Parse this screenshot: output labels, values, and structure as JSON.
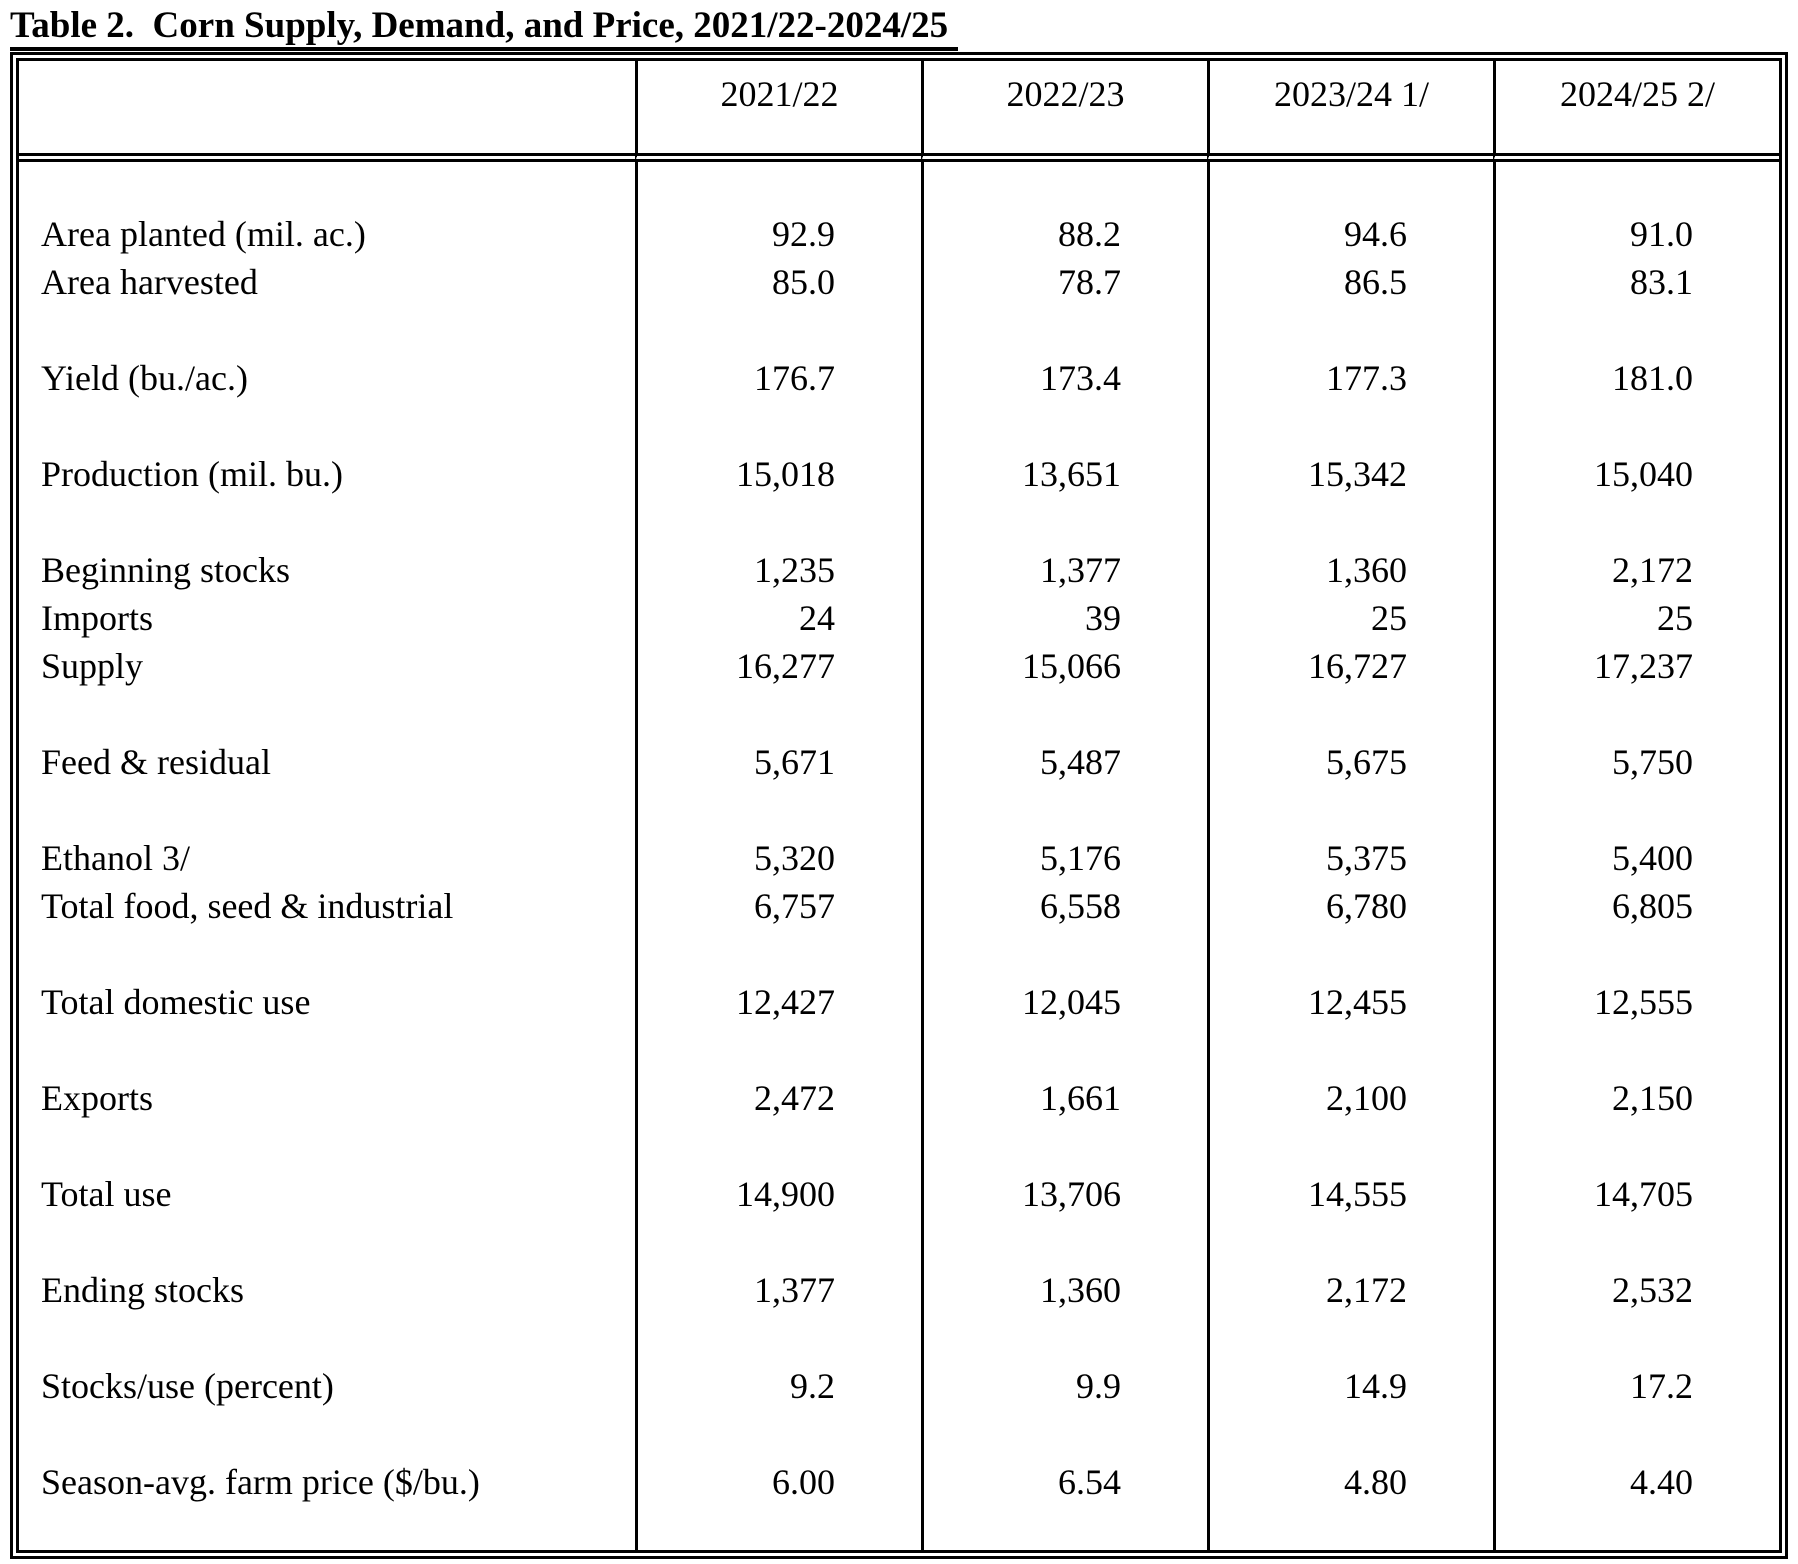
{
  "title": "Table 2.  Corn Supply, Demand, and Price, 2021/22-2024/25",
  "table": {
    "corner": "",
    "columns": [
      "2021/22",
      "2022/23",
      "2023/24 1/",
      "2024/25 2/"
    ],
    "rows": [
      {
        "label": "Area planted (mil. ac.)",
        "values": [
          "92.9",
          "88.2",
          "94.6",
          "91.0"
        ]
      },
      {
        "label": "Area harvested",
        "values": [
          "85.0",
          "78.7",
          "86.5",
          "83.1"
        ]
      },
      {
        "label": "Yield (bu./ac.)",
        "values": [
          "176.7",
          "173.4",
          "177.3",
          "181.0"
        ]
      },
      {
        "label": "Production (mil. bu.)",
        "values": [
          "15,018",
          "13,651",
          "15,342",
          "15,040"
        ]
      },
      {
        "label": "Beginning stocks",
        "values": [
          "1,235",
          "1,377",
          "1,360",
          "2,172"
        ]
      },
      {
        "label": "Imports",
        "values": [
          "24",
          "39",
          "25",
          "25"
        ]
      },
      {
        "label": "Supply",
        "values": [
          "16,277",
          "15,066",
          "16,727",
          "17,237"
        ]
      },
      {
        "label": "Feed & residual",
        "values": [
          "5,671",
          "5,487",
          "5,675",
          "5,750"
        ]
      },
      {
        "label": "Ethanol 3/",
        "values": [
          "5,320",
          "5,176",
          "5,375",
          "5,400"
        ]
      },
      {
        "label": "Total food, seed & industrial",
        "values": [
          "6,757",
          "6,558",
          "6,780",
          "6,805"
        ]
      },
      {
        "label": "Total domestic use",
        "values": [
          "12,427",
          "12,045",
          "12,455",
          "12,555"
        ]
      },
      {
        "label": "Exports",
        "values": [
          "2,472",
          "1,661",
          "2,100",
          "2,150"
        ]
      },
      {
        "label": "Total use",
        "values": [
          "14,900",
          "13,706",
          "14,555",
          "14,705"
        ]
      },
      {
        "label": "Ending stocks",
        "values": [
          "1,377",
          "1,360",
          "2,172",
          "2,532"
        ]
      },
      {
        "label": "Stocks/use (percent)",
        "values": [
          "9.2",
          "9.9",
          "14.9",
          "17.2"
        ]
      },
      {
        "label": "Season-avg. farm price ($/bu.)",
        "values": [
          "6.00",
          "6.54",
          "4.80",
          "4.40"
        ]
      }
    ]
  }
}
